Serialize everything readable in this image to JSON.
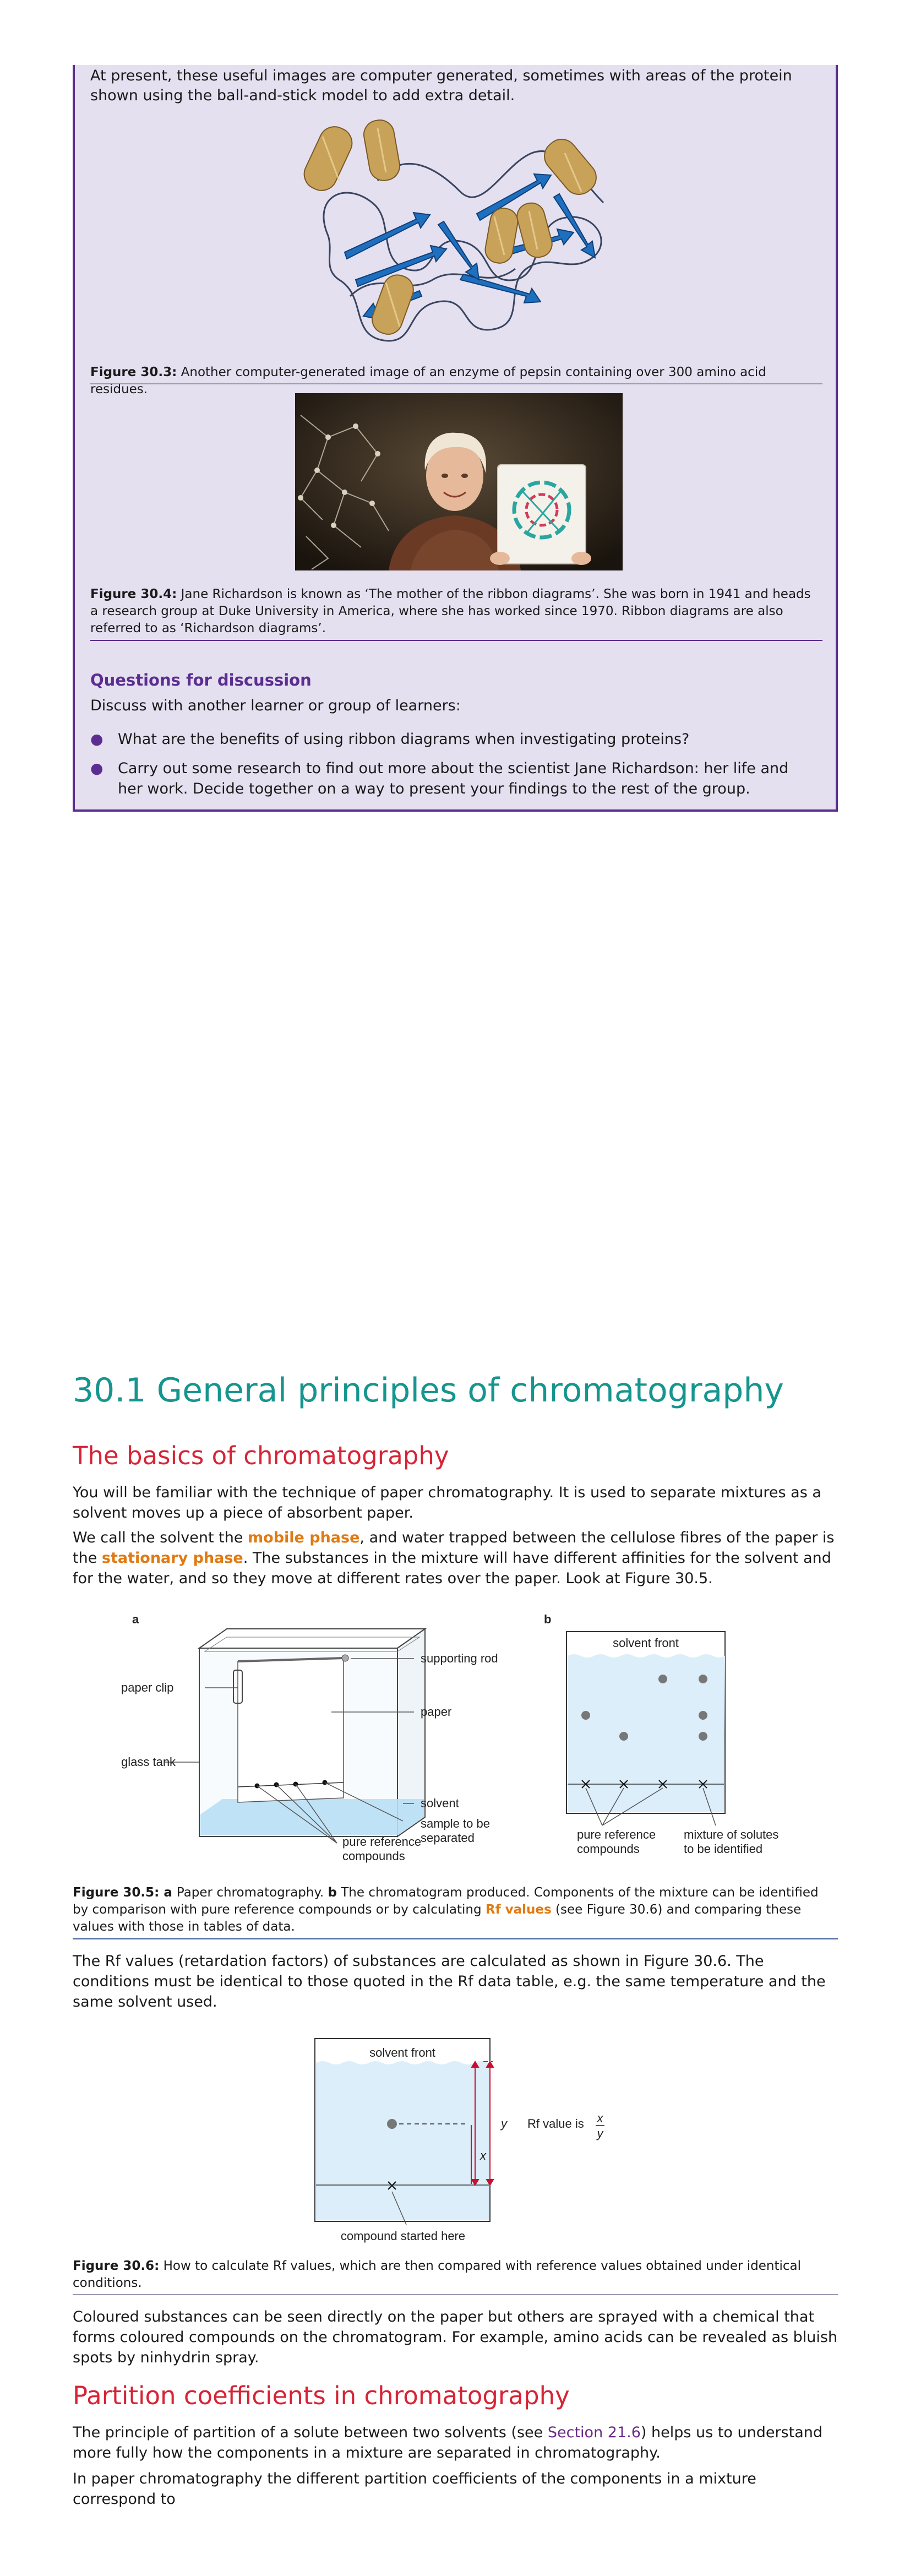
{
  "box": {
    "intro": "At present, these useful images are computer generated, sometimes with areas of the protein shown using the ball-and-stick model to add extra detail.",
    "fig3_label": "Figure 30.3:",
    "fig3_text": "Another computer-generated image of an enzyme of pepsin containing over 300 amino acid residues.",
    "fig4_label": "Figure 30.4:",
    "fig4_text": "Jane Richardson is known as ‘The mother of the ribbon diagrams’. She was born in 1941 and heads a research group at Duke University in America, where she has worked since 1970. Ribbon diagrams are also referred to as ‘Richardson diagrams’.",
    "questions_title": "Questions for discussion",
    "questions_intro": "Discuss with another learner or group of learners:",
    "questions": [
      "What are the benefits of using ribbon diagrams when investigating proteins?",
      "Carry out some research to find out more about the scientist Jane Richardson: her life and her work. Decide together on a way to present your findings to the rest of the group."
    ]
  },
  "section": {
    "title": "30.1 General principles of chromatography",
    "basics_heading": "The basics of chromatography",
    "p1": "You will be familiar with the technique of paper chromatography. It is used to separate mixtures as a solvent moves up a piece of absorbent paper.",
    "p2_a": "We call the solvent the ",
    "p2_kw1": "mobile phase",
    "p2_b": ", and water trapped between the cellulose fibres of the paper is the ",
    "p2_kw2": "stationary phase",
    "p2_c": ". The substances in the mixture will have different affinities for the solvent and for the water, and so they move at different rates over the paper. Look at Figure 30.5.",
    "fig5": {
      "label_a": "a",
      "label_b": "b",
      "supporting_rod": "supporting rod",
      "paper_clip": "paper clip",
      "paper": "paper",
      "glass_tank": "glass tank",
      "solvent": "solvent",
      "sample_1": "sample to be",
      "sample_2": "separated",
      "pure_ref_1": "pure reference",
      "pure_ref_2": "compounds",
      "solvent_front": "solvent front",
      "pure_ref_b1": "pure reference",
      "pure_ref_b2": "compounds",
      "mixture_1": "mixture of solutes",
      "mixture_2": "to be identified",
      "caption_label": "Figure 30.5:",
      "caption_a": " a ",
      "caption_t1": "Paper chromatography. ",
      "caption_b": "b",
      "caption_t2": " The chromatogram produced. Components of the mixture can be identified by comparison with pure reference compounds or by calculating ",
      "caption_kw": "Rf values",
      "caption_t3": " (see Figure 30.6) and comparing these values with those in tables of data."
    },
    "p3": "The Rf values (retardation factors) of substances are calculated as shown in Figure 30.6. The conditions must be identical to those quoted in the Rf data table, e.g. the same temperature and the same solvent used.",
    "fig6": {
      "solvent_front": "solvent front",
      "y": "y",
      "x": "x",
      "rf_text": "Rf value is",
      "frac_num": "x",
      "frac_den": "y",
      "compound_started": "compound started here",
      "caption_label": "Figure 30.6:",
      "caption_text": "How to calculate Rf values, which are then compared with reference values obtained under identical conditions."
    },
    "p4": "Coloured substances can be seen directly on the paper but others are sprayed with a chemical that forms coloured compounds on the chromatogram. For example, amino acids can be revealed as bluish spots by ninhydrin spray.",
    "partition_heading": "Partition coefficients in chromatography",
    "p5_a": "The principle of partition of a solute between two solvents (see ",
    "p5_link": "Section 21.6",
    "p5_b": ") helps us to understand more fully how the components in a mixture are separated in chromatography.",
    "p6": "In paper chromatography the different partition coefficients of the components in a mixture correspond to"
  },
  "colors": {
    "box_bg": "#e4e0f0",
    "box_border": "#5c2d91",
    "heading_teal": "#16958f",
    "heading_red": "#d62436",
    "keyword_orange": "#e07a12"
  }
}
